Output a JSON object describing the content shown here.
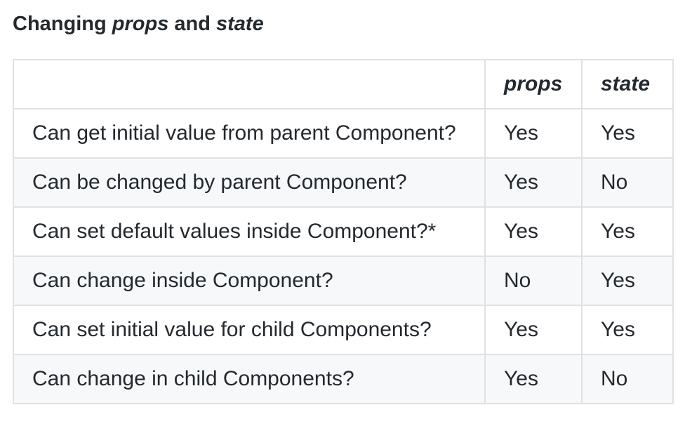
{
  "heading": {
    "prefix": "Changing ",
    "term1": "props",
    "middle": " and ",
    "term2": "state"
  },
  "table": {
    "headers": [
      "",
      "props",
      "state"
    ],
    "rows": [
      [
        "Can get initial value from parent Component?",
        "Yes",
        "Yes"
      ],
      [
        "Can be changed by parent Component?",
        "Yes",
        "No"
      ],
      [
        "Can set default values inside Component?*",
        "Yes",
        "Yes"
      ],
      [
        "Can change inside Component?",
        "No",
        "Yes"
      ],
      [
        "Can set initial value for child Components?",
        "Yes",
        "Yes"
      ],
      [
        "Can change in child Components?",
        "Yes",
        "No"
      ]
    ]
  },
  "colors": {
    "text": "#24292e",
    "border": "#dfe2e5",
    "alt_row": "#f6f8fa"
  }
}
